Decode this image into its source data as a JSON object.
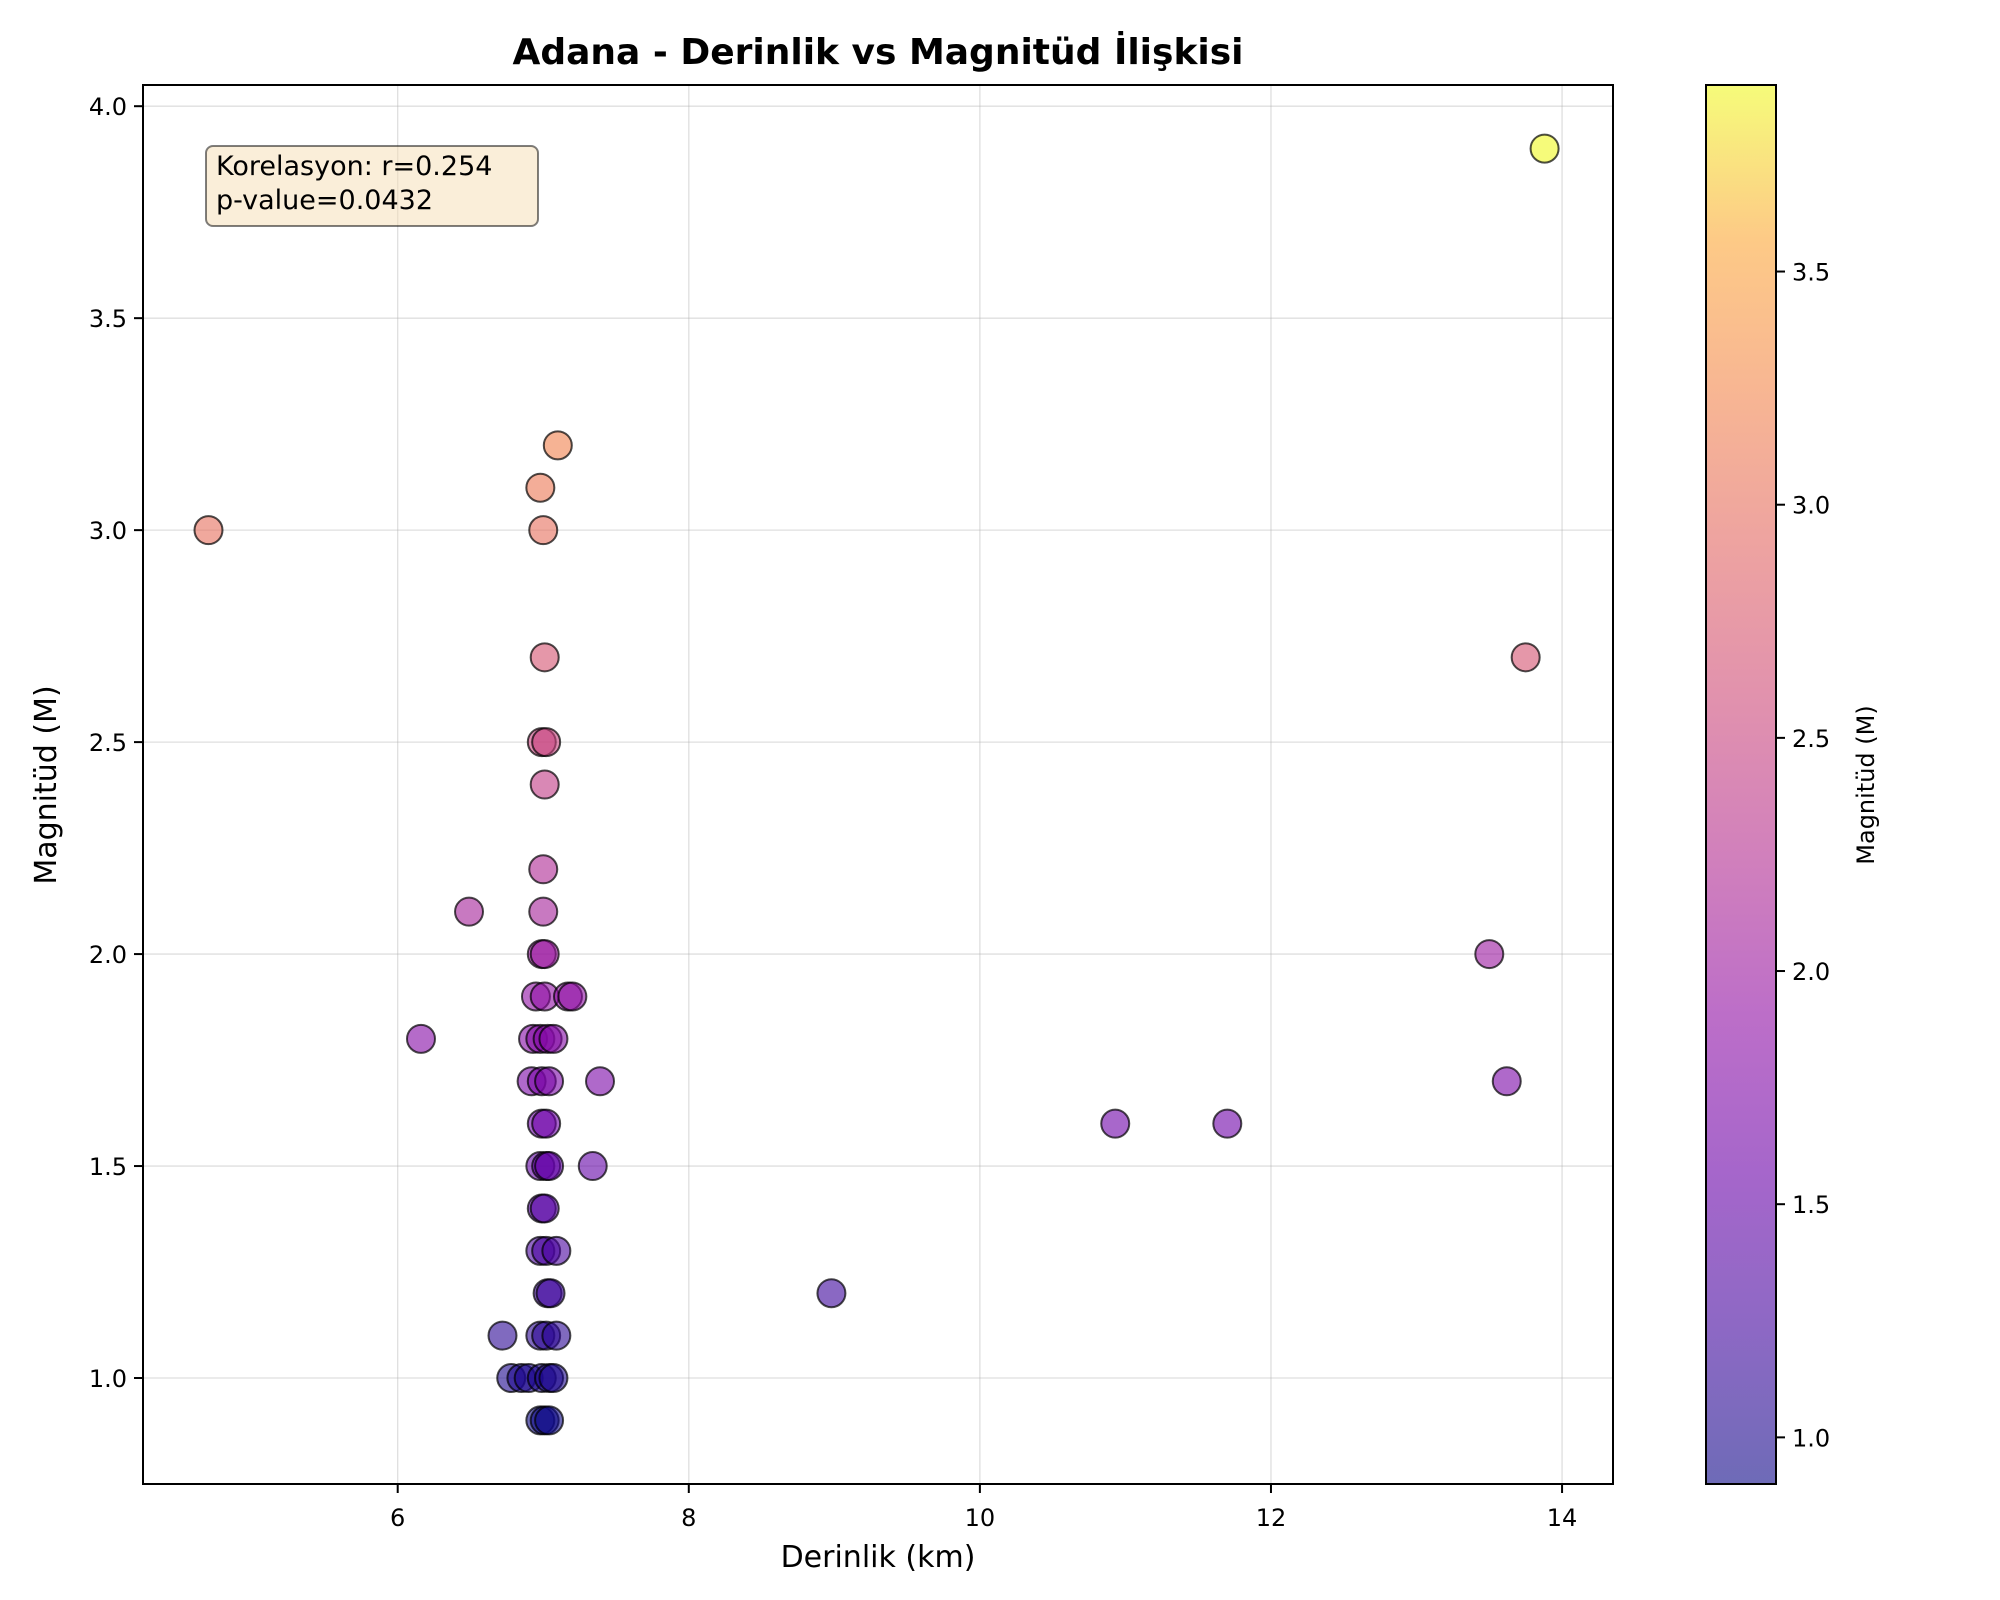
{
  "chart_data": {
    "type": "scatter",
    "title": "Adana - Derinlik vs Magnitüd İlişkisi",
    "xlabel": "Derinlik (km)",
    "ylabel": "Magnitüd (M)",
    "xlim": [
      4.25,
      14.35
    ],
    "ylim": [
      0.75,
      4.05
    ],
    "xticks": [
      6,
      8,
      10,
      12,
      14
    ],
    "yticks": [
      1.0,
      1.5,
      2.0,
      2.5,
      3.0,
      3.5,
      4.0
    ],
    "grid": true,
    "colorbar": {
      "label": "Magnitüd (M)",
      "colormap": "plasma",
      "range": [
        0.9,
        3.9
      ],
      "ticks": [
        1.0,
        1.5,
        2.0,
        2.5,
        3.0,
        3.5
      ]
    },
    "annotation": {
      "line1": "Korelasyon: r=0.254",
      "line2": "p-value=0.0432"
    },
    "points": [
      {
        "x": 4.7,
        "y": 3.0
      },
      {
        "x": 6.98,
        "y": 3.1
      },
      {
        "x": 7.1,
        "y": 3.2
      },
      {
        "x": 7.0,
        "y": 3.0
      },
      {
        "x": 7.01,
        "y": 2.7
      },
      {
        "x": 6.99,
        "y": 2.5
      },
      {
        "x": 7.02,
        "y": 2.5
      },
      {
        "x": 7.01,
        "y": 2.4
      },
      {
        "x": 7.0,
        "y": 2.2
      },
      {
        "x": 6.49,
        "y": 2.1
      },
      {
        "x": 7.0,
        "y": 2.1
      },
      {
        "x": 6.99,
        "y": 2.0
      },
      {
        "x": 7.01,
        "y": 2.0
      },
      {
        "x": 6.95,
        "y": 1.9
      },
      {
        "x": 7.01,
        "y": 1.9
      },
      {
        "x": 7.17,
        "y": 1.9
      },
      {
        "x": 7.2,
        "y": 1.9
      },
      {
        "x": 6.16,
        "y": 1.8
      },
      {
        "x": 6.93,
        "y": 1.8
      },
      {
        "x": 6.98,
        "y": 1.8
      },
      {
        "x": 7.03,
        "y": 1.8
      },
      {
        "x": 7.07,
        "y": 1.8
      },
      {
        "x": 6.92,
        "y": 1.7
      },
      {
        "x": 6.99,
        "y": 1.7
      },
      {
        "x": 7.04,
        "y": 1.7
      },
      {
        "x": 7.39,
        "y": 1.7
      },
      {
        "x": 6.99,
        "y": 1.6
      },
      {
        "x": 7.02,
        "y": 1.6
      },
      {
        "x": 6.98,
        "y": 1.5
      },
      {
        "x": 7.02,
        "y": 1.5
      },
      {
        "x": 7.04,
        "y": 1.5
      },
      {
        "x": 7.34,
        "y": 1.5
      },
      {
        "x": 6.99,
        "y": 1.4
      },
      {
        "x": 7.01,
        "y": 1.4
      },
      {
        "x": 6.98,
        "y": 1.3
      },
      {
        "x": 7.02,
        "y": 1.3
      },
      {
        "x": 7.09,
        "y": 1.3
      },
      {
        "x": 7.03,
        "y": 1.2
      },
      {
        "x": 7.05,
        "y": 1.2
      },
      {
        "x": 6.72,
        "y": 1.1
      },
      {
        "x": 6.98,
        "y": 1.1
      },
      {
        "x": 7.02,
        "y": 1.1
      },
      {
        "x": 7.09,
        "y": 1.1
      },
      {
        "x": 6.78,
        "y": 1.0
      },
      {
        "x": 6.85,
        "y": 1.0
      },
      {
        "x": 6.9,
        "y": 1.0
      },
      {
        "x": 6.99,
        "y": 1.0
      },
      {
        "x": 7.04,
        "y": 1.0
      },
      {
        "x": 7.07,
        "y": 1.0
      },
      {
        "x": 6.98,
        "y": 0.9
      },
      {
        "x": 7.01,
        "y": 0.9
      },
      {
        "x": 7.04,
        "y": 0.9
      },
      {
        "x": 8.98,
        "y": 1.2
      },
      {
        "x": 10.93,
        "y": 1.6
      },
      {
        "x": 11.7,
        "y": 1.6
      },
      {
        "x": 13.5,
        "y": 2.0
      },
      {
        "x": 13.62,
        "y": 1.7
      },
      {
        "x": 13.75,
        "y": 2.7
      },
      {
        "x": 13.88,
        "y": 3.9
      }
    ]
  }
}
